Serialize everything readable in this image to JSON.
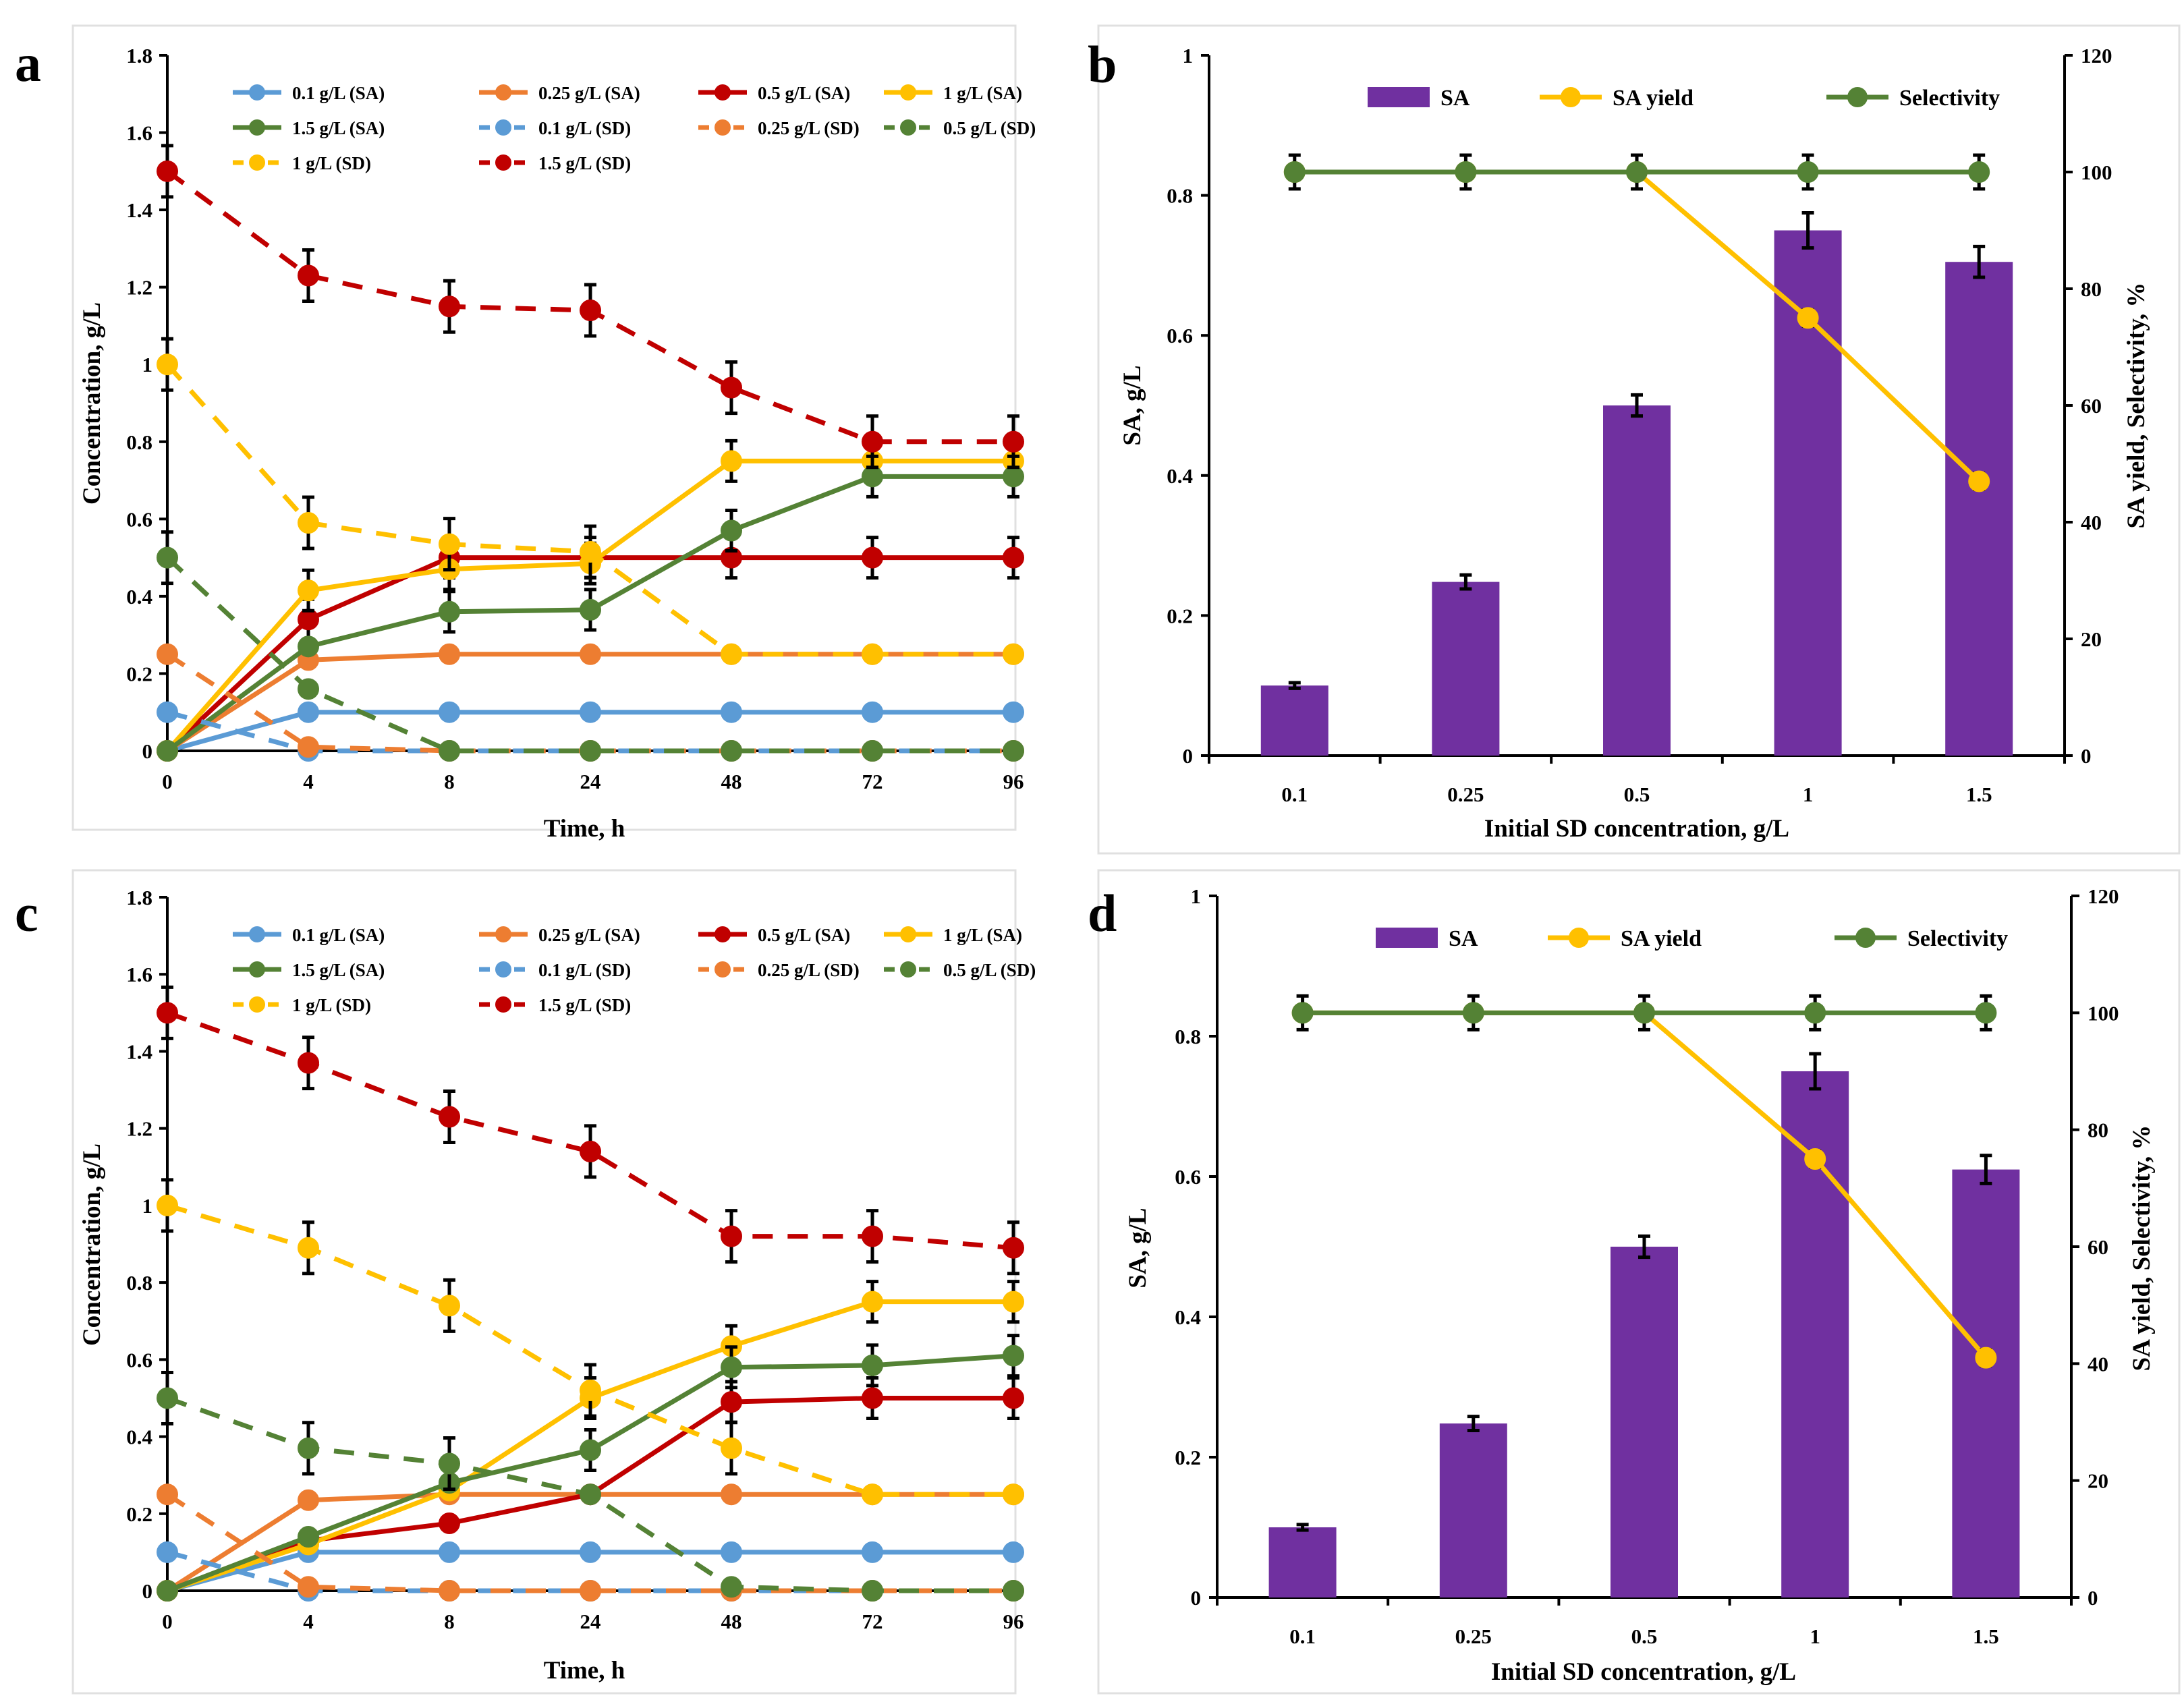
{
  "figure": {
    "colors": {
      "blue": "#5b9bd5",
      "orange": "#ed7d31",
      "red": "#c00000",
      "yellow": "#ffc000",
      "green": "#548235",
      "purple": "#7030a0"
    },
    "panels": [
      "a",
      "b",
      "c",
      "d"
    ]
  },
  "chart_data": [
    {
      "id": "a",
      "type": "line",
      "xlabel": "Time, h",
      "ylabel": "Concentration, g/L",
      "categories": [
        "0",
        "4",
        "8",
        "24",
        "48",
        "72",
        "96"
      ],
      "ylim": [
        0,
        1.8
      ],
      "yticks": [
        0,
        0.2,
        0.4,
        0.6,
        0.8,
        1,
        1.2,
        1.4,
        1.6,
        1.8
      ],
      "ytick_labels": [
        "0",
        "0.2",
        "0.4",
        "0.6",
        "0.8",
        "1",
        "1.2",
        "1.4",
        "1.6",
        "1.8"
      ],
      "legend": "top",
      "series": [
        {
          "name": "0.1 g/L (SA)",
          "color": "blue",
          "dash": false,
          "values": [
            0,
            0.1,
            0.1,
            0.1,
            0.1,
            0.1,
            0.1
          ]
        },
        {
          "name": "0.25  g/L (SA)",
          "color": "orange",
          "dash": false,
          "values": [
            0,
            0.235,
            0.25,
            0.25,
            0.25,
            0.25,
            0.25
          ]
        },
        {
          "name": "0.5  g/L (SA)",
          "color": "red",
          "dash": false,
          "values": [
            0,
            0.34,
            0.5,
            0.5,
            0.5,
            0.5,
            0.5
          ]
        },
        {
          "name": "1  g/L  (SA)",
          "color": "yellow",
          "dash": false,
          "values": [
            0,
            0.415,
            0.47,
            0.485,
            0.75,
            0.75,
            0.75
          ]
        },
        {
          "name": "1.5  g/L (SA)",
          "color": "green",
          "dash": false,
          "values": [
            0,
            0.27,
            0.36,
            0.365,
            0.57,
            0.71,
            0.71
          ]
        },
        {
          "name": "0.1 g/L (SD)",
          "color": "blue",
          "dash": true,
          "values": [
            0.1,
            0,
            0,
            0,
            0,
            0,
            0
          ]
        },
        {
          "name": "0.25  g/L (SD)",
          "color": "orange",
          "dash": true,
          "values": [
            0.25,
            0.01,
            0,
            0,
            0,
            0,
            0
          ]
        },
        {
          "name": "0.5  g/L (SD)",
          "color": "green",
          "dash": true,
          "values": [
            0.5,
            0.16,
            0,
            0,
            0,
            0,
            0
          ]
        },
        {
          "name": "1  g/L  (SD)",
          "color": "yellow",
          "dash": true,
          "values": [
            1,
            0.59,
            0.535,
            0.515,
            0.25,
            0.25,
            0.25
          ]
        },
        {
          "name": "1.5  g/L (SD)",
          "color": "red",
          "dash": true,
          "values": [
            1.5,
            1.23,
            1.15,
            1.14,
            0.94,
            0.8,
            0.8
          ]
        }
      ]
    },
    {
      "id": "b",
      "type": "bar",
      "xlabel": "Initial SD concentration, g/L",
      "ylabel": "SA, g/L",
      "y2label": "SA yield, Selectivity, %",
      "categories": [
        "0.1",
        "0.25",
        "0.5",
        "1",
        "1.5"
      ],
      "ylim": [
        0,
        1
      ],
      "yticks": [
        0,
        0.2,
        0.4,
        0.6,
        0.8,
        1
      ],
      "ytick_labels": [
        "0",
        "0.2",
        "0.4",
        "0.6",
        "0.8",
        "1"
      ],
      "y2lim": [
        0,
        120
      ],
      "y2ticks": [
        0,
        20,
        40,
        60,
        80,
        100,
        120
      ],
      "y2tick_labels": [
        "0",
        "20",
        "40",
        "60",
        "80",
        "100",
        "120"
      ],
      "legend": "top",
      "bars": {
        "name": "SA",
        "color": "purple",
        "values": [
          0.1,
          0.248,
          0.5,
          0.75,
          0.705
        ],
        "errors": [
          0.004,
          0.01,
          0.015,
          0.025,
          0.022
        ]
      },
      "lines": [
        {
          "name": "SA yield",
          "color": "yellow",
          "values": [
            100,
            100,
            100,
            75,
            47
          ]
        },
        {
          "name": "Selectivity",
          "color": "green",
          "values": [
            100,
            100,
            100,
            100,
            100
          ]
        }
      ]
    },
    {
      "id": "c",
      "type": "line",
      "xlabel": "Time, h",
      "ylabel": "Concentration, g/L",
      "categories": [
        "0",
        "4",
        "8",
        "24",
        "48",
        "72",
        "96"
      ],
      "ylim": [
        0,
        1.8
      ],
      "yticks": [
        0,
        0.2,
        0.4,
        0.6,
        0.8,
        1,
        1.2,
        1.4,
        1.6,
        1.8
      ],
      "ytick_labels": [
        "0",
        "0.2",
        "0.4",
        "0.6",
        "0.8",
        "1",
        "1.2",
        "1.4",
        "1.6",
        "1.8"
      ],
      "legend": "top",
      "series": [
        {
          "name": "0.1 g/L (SA)",
          "color": "blue",
          "dash": false,
          "values": [
            0,
            0.1,
            0.1,
            0.1,
            0.1,
            0.1,
            0.1
          ]
        },
        {
          "name": "0.25  g/L (SA)",
          "color": "orange",
          "dash": false,
          "values": [
            0,
            0.235,
            0.25,
            0.25,
            0.25,
            0.25,
            0.25
          ]
        },
        {
          "name": "0.5  g/L (SA)",
          "color": "red",
          "dash": false,
          "values": [
            0,
            0.13,
            0.175,
            0.25,
            0.49,
            0.5,
            0.5
          ]
        },
        {
          "name": "1  g/L  (SA)",
          "color": "yellow",
          "dash": false,
          "values": [
            0,
            0.12,
            0.26,
            0.5,
            0.635,
            0.75,
            0.75
          ]
        },
        {
          "name": "1.5  g/L (SA)",
          "color": "green",
          "dash": false,
          "values": [
            0,
            0.14,
            0.28,
            0.365,
            0.58,
            0.585,
            0.61
          ]
        },
        {
          "name": "0.1 g/L (SD)",
          "color": "blue",
          "dash": true,
          "values": [
            0.1,
            0,
            0,
            0,
            0,
            0,
            0
          ]
        },
        {
          "name": "0.25  g/L (SD)",
          "color": "orange",
          "dash": true,
          "values": [
            0.25,
            0.01,
            0,
            0,
            0,
            0,
            0
          ]
        },
        {
          "name": "0.5  g/L (SD)",
          "color": "green",
          "dash": true,
          "values": [
            0.5,
            0.37,
            0.33,
            0.25,
            0.01,
            0,
            0
          ]
        },
        {
          "name": "1  g/L  (SD)",
          "color": "yellow",
          "dash": true,
          "values": [
            1,
            0.89,
            0.74,
            0.52,
            0.37,
            0.25,
            0.25
          ]
        },
        {
          "name": "1.5  g/L (SD)",
          "color": "red",
          "dash": true,
          "values": [
            1.5,
            1.37,
            1.23,
            1.14,
            0.92,
            0.92,
            0.89
          ]
        }
      ]
    },
    {
      "id": "d",
      "type": "bar",
      "xlabel": "Initial SD concentration, g/L",
      "ylabel": "SA, g/L",
      "y2label": "SA yield, Selectivity, %",
      "categories": [
        "0.1",
        "0.25",
        "0.5",
        "1",
        "1.5"
      ],
      "ylim": [
        0,
        1
      ],
      "yticks": [
        0,
        0.2,
        0.4,
        0.6,
        0.8,
        1
      ],
      "ytick_labels": [
        "0",
        "0.2",
        "0.4",
        "0.6",
        "0.8",
        "1"
      ],
      "y2lim": [
        0,
        120
      ],
      "y2ticks": [
        0,
        20,
        40,
        60,
        80,
        100,
        120
      ],
      "y2tick_labels": [
        "0",
        "20",
        "40",
        "60",
        "80",
        "100",
        "120"
      ],
      "legend": "top",
      "bars": {
        "name": "SA",
        "color": "purple",
        "values": [
          0.1,
          0.248,
          0.5,
          0.75,
          0.61
        ],
        "errors": [
          0.004,
          0.01,
          0.015,
          0.025,
          0.02
        ]
      },
      "lines": [
        {
          "name": "SA yield",
          "color": "yellow",
          "values": [
            100,
            100,
            100,
            75,
            41
          ]
        },
        {
          "name": "Selectivity",
          "color": "green",
          "values": [
            100,
            100,
            100,
            100,
            100
          ]
        }
      ]
    }
  ]
}
